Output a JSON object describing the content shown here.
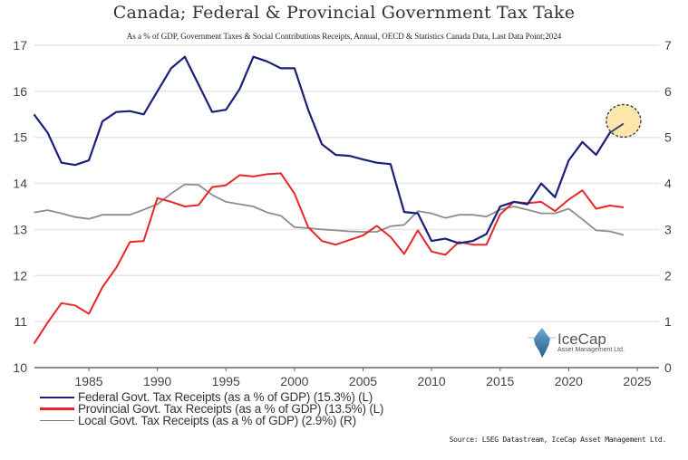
{
  "chart_data": {
    "type": "line",
    "title": "Canada; Federal & Provincial Government Tax Take",
    "subtitle": "As a % of GDP, Government Taxes & Social Contributions Receipts, Annual, OECD & Statistics Canada Data, Last Data Point;2024",
    "xlabel": "",
    "ylabel_left": "",
    "ylabel_right": "",
    "xlim": [
      1981,
      2027
    ],
    "ylim_left": [
      10,
      17
    ],
    "ylim_right": [
      0,
      7
    ],
    "x_ticks": [
      1985,
      1990,
      1995,
      2000,
      2005,
      2010,
      2015,
      2020,
      2025
    ],
    "y_ticks_left": [
      10,
      11,
      12,
      13,
      14,
      15,
      16,
      17
    ],
    "y_ticks_right": [
      0,
      1,
      2,
      3,
      4,
      5,
      6,
      7
    ],
    "grid": true,
    "legend_position": "bottom-left",
    "x": [
      1981,
      1982,
      1983,
      1984,
      1985,
      1986,
      1987,
      1988,
      1989,
      1990,
      1991,
      1992,
      1993,
      1994,
      1995,
      1996,
      1997,
      1998,
      1999,
      2000,
      2001,
      2002,
      2003,
      2004,
      2005,
      2006,
      2007,
      2008,
      2009,
      2010,
      2011,
      2012,
      2013,
      2014,
      2015,
      2016,
      2017,
      2018,
      2019,
      2020,
      2021,
      2022,
      2023,
      2024
    ],
    "series": [
      {
        "name": "Federal Govt. Tax Receipts (as a % of GDP) (15.3%) (L)",
        "axis": "left",
        "color": "#1a1f7a",
        "values": [
          15.5,
          15.1,
          14.45,
          14.4,
          14.5,
          15.35,
          15.55,
          15.57,
          15.5,
          16.0,
          16.5,
          16.75,
          16.15,
          15.55,
          15.6,
          16.05,
          16.75,
          16.65,
          16.5,
          16.5,
          15.6,
          14.85,
          14.62,
          14.6,
          14.52,
          14.45,
          14.42,
          13.38,
          13.35,
          12.75,
          12.8,
          12.7,
          12.75,
          12.9,
          13.5,
          13.6,
          13.55,
          14.0,
          13.7,
          14.5,
          14.9,
          14.62,
          15.1,
          15.3
        ]
      },
      {
        "name": "Provincial Govt. Tax Receipts (as a % of GDP) (13.5%) (L)",
        "axis": "left",
        "color": "#e8262a",
        "values": [
          10.52,
          10.98,
          11.4,
          11.35,
          11.17,
          11.75,
          12.17,
          12.73,
          12.75,
          13.68,
          13.6,
          13.5,
          13.53,
          13.92,
          13.96,
          14.18,
          14.15,
          14.2,
          14.22,
          13.78,
          13.05,
          12.75,
          12.67,
          12.77,
          12.87,
          13.08,
          12.84,
          12.47,
          12.98,
          12.52,
          12.45,
          12.73,
          12.67,
          12.67,
          13.33,
          13.6,
          13.57,
          13.6,
          13.4,
          13.65,
          13.85,
          13.45,
          13.52,
          13.48
        ]
      },
      {
        "name": "Local Govt. Tax Receipts (as a % of GDP) (2.9%) (R)",
        "axis": "right",
        "color": "#8c8c8c",
        "values": [
          3.37,
          3.42,
          3.35,
          3.27,
          3.23,
          3.32,
          3.32,
          3.32,
          3.43,
          3.55,
          3.78,
          3.98,
          3.97,
          3.75,
          3.6,
          3.55,
          3.5,
          3.37,
          3.3,
          3.05,
          3.03,
          3.0,
          2.98,
          2.96,
          2.95,
          2.95,
          3.07,
          3.1,
          3.4,
          3.35,
          3.25,
          3.32,
          3.32,
          3.28,
          3.43,
          3.5,
          3.43,
          3.35,
          3.35,
          3.45,
          3.22,
          2.98,
          2.96,
          2.88
        ]
      }
    ],
    "annotations": [
      {
        "type": "highlight-circle",
        "x": 2024,
        "y": 15.3,
        "axis": "left",
        "fill": "#fbe3a2",
        "stroke": "#333333"
      }
    ]
  },
  "logo": {
    "name": "IceCap",
    "subtitle": "Asset Management Ltd."
  },
  "source": "Source: LSEG Datastream, IceCap Asset Management Ltd."
}
